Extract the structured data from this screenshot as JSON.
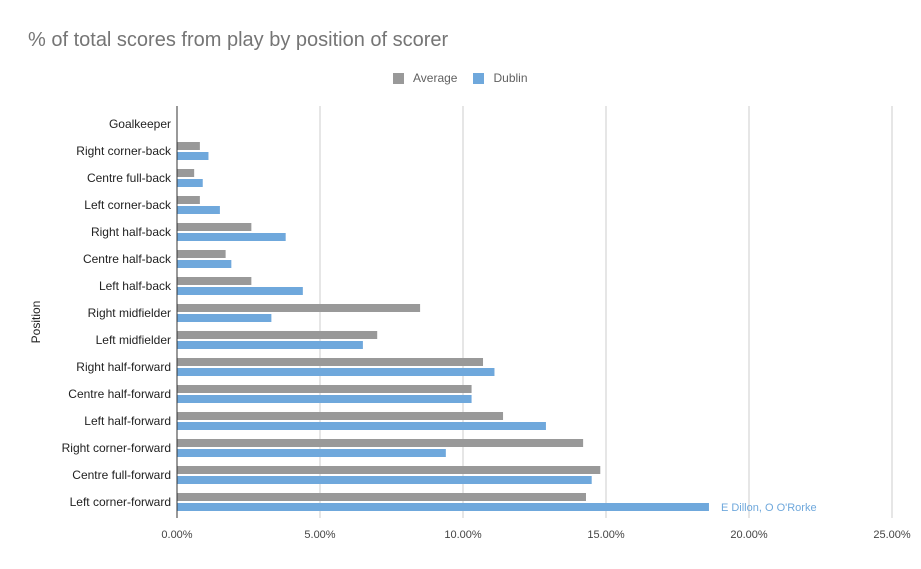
{
  "chart_data": {
    "type": "bar",
    "orientation": "horizontal",
    "title": "% of total scores from play by position of scorer",
    "ylabel": "Position",
    "xlabel": "",
    "xlim": [
      0,
      25
    ],
    "x_ticks": [
      "0.00%",
      "5.00%",
      "10.00%",
      "15.00%",
      "20.00%",
      "25.00%"
    ],
    "grid": true,
    "legend_position": "top",
    "categories": [
      "Goalkeeper",
      "Right corner-back",
      "Centre full-back",
      "Left corner-back",
      "Right half-back",
      "Centre half-back",
      "Left half-back",
      "Right midfielder",
      "Left midfielder",
      "Right half-forward",
      "Centre half-forward",
      "Left half-forward",
      "Right corner-forward",
      "Centre full-forward",
      "Left corner-forward"
    ],
    "series": [
      {
        "name": "Average",
        "color": "#999999",
        "values": [
          0,
          0.8,
          0.6,
          0.8,
          2.6,
          1.7,
          2.6,
          8.5,
          7.0,
          10.7,
          10.3,
          11.4,
          14.2,
          14.8,
          14.3
        ]
      },
      {
        "name": "Dublin",
        "color": "#6fa8dc",
        "values": [
          0,
          1.1,
          0.9,
          1.5,
          3.8,
          1.9,
          4.4,
          3.3,
          6.5,
          11.1,
          10.3,
          12.9,
          9.4,
          14.5,
          18.6
        ]
      }
    ],
    "annotations": [
      {
        "text": "E Dillon, O O'Rorke",
        "category": "Left corner-forward",
        "series": "Dublin",
        "color": "#6fa8dc"
      }
    ]
  }
}
